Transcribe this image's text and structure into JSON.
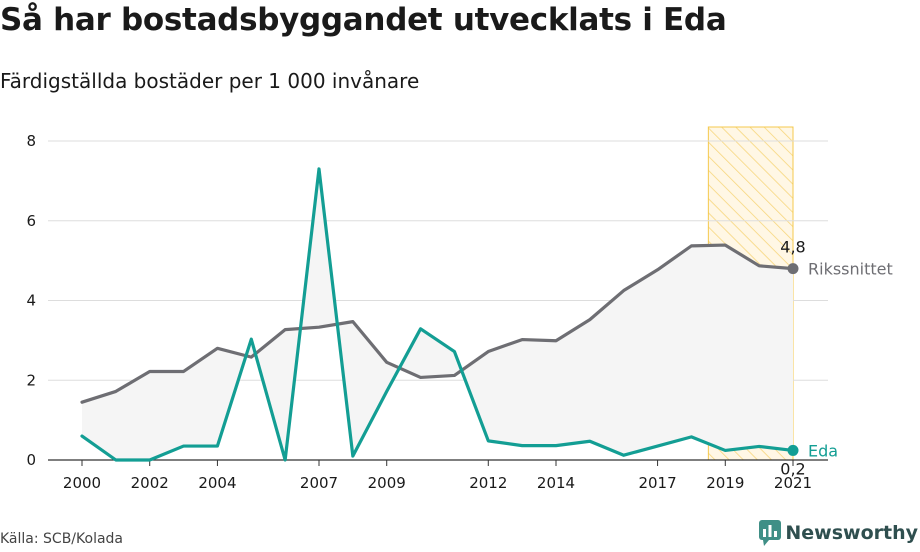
{
  "title": "Så har bostadsbyggandet utvecklats i Eda",
  "subtitle": "Färdigställda bostäder per 1 000 invånare",
  "source": "Källa: SCB/Kolada",
  "brand": {
    "name": "Newsworthy",
    "icon": "newsworthy-logo-icon",
    "color": "#2f4f4f"
  },
  "chart_data": {
    "type": "line",
    "x": [
      2000,
      2001,
      2002,
      2003,
      2004,
      2005,
      2006,
      2007,
      2008,
      2009,
      2010,
      2011,
      2012,
      2013,
      2014,
      2015,
      2016,
      2017,
      2018,
      2019,
      2020,
      2021
    ],
    "x_ticks": [
      {
        "value": 2000,
        "label": "2000"
      },
      {
        "value": 2002,
        "label": "2002"
      },
      {
        "value": 2004,
        "label": "2004"
      },
      {
        "value": 2007,
        "label": "2007"
      },
      {
        "value": 2009,
        "label": "2009"
      },
      {
        "value": 2012,
        "label": "2012"
      },
      {
        "value": 2014,
        "label": "2014"
      },
      {
        "value": 2017,
        "label": "2017"
      },
      {
        "value": 2019,
        "label": "2019"
      },
      {
        "value": 2021,
        "label": "2021"
      }
    ],
    "y_ticks": [
      {
        "value": 0,
        "label": "0"
      },
      {
        "value": 2,
        "label": "2"
      },
      {
        "value": 4,
        "label": "4"
      },
      {
        "value": 6,
        "label": "6"
      },
      {
        "value": 8,
        "label": "8"
      }
    ],
    "ylim": [
      0,
      8.4
    ],
    "xlim": [
      2000,
      2021
    ],
    "grid": true,
    "series": [
      {
        "name": "Rikssnittet",
        "color": "#6e6e73",
        "values": [
          1.45,
          1.72,
          2.22,
          2.22,
          2.8,
          2.58,
          3.27,
          3.33,
          3.47,
          2.45,
          2.07,
          2.12,
          2.72,
          3.02,
          2.99,
          3.52,
          4.25,
          4.77,
          5.37,
          5.39,
          4.87,
          4.8
        ],
        "end_label": "4,8"
      },
      {
        "name": "Eda",
        "color": "#139e94",
        "values": [
          0.6,
          0.0,
          0.0,
          0.35,
          0.35,
          3.03,
          0.0,
          7.3,
          0.1,
          1.72,
          3.29,
          2.72,
          0.48,
          0.36,
          0.36,
          0.47,
          0.12,
          0.35,
          0.58,
          0.24,
          0.34,
          0.24
        ],
        "end_label": "0,2"
      }
    ],
    "highlight": {
      "from": 2018.5,
      "to": 2021,
      "fill": "#fde7b5",
      "stroke": "#f4c94e"
    },
    "area_fill": "#f5f5f5"
  }
}
